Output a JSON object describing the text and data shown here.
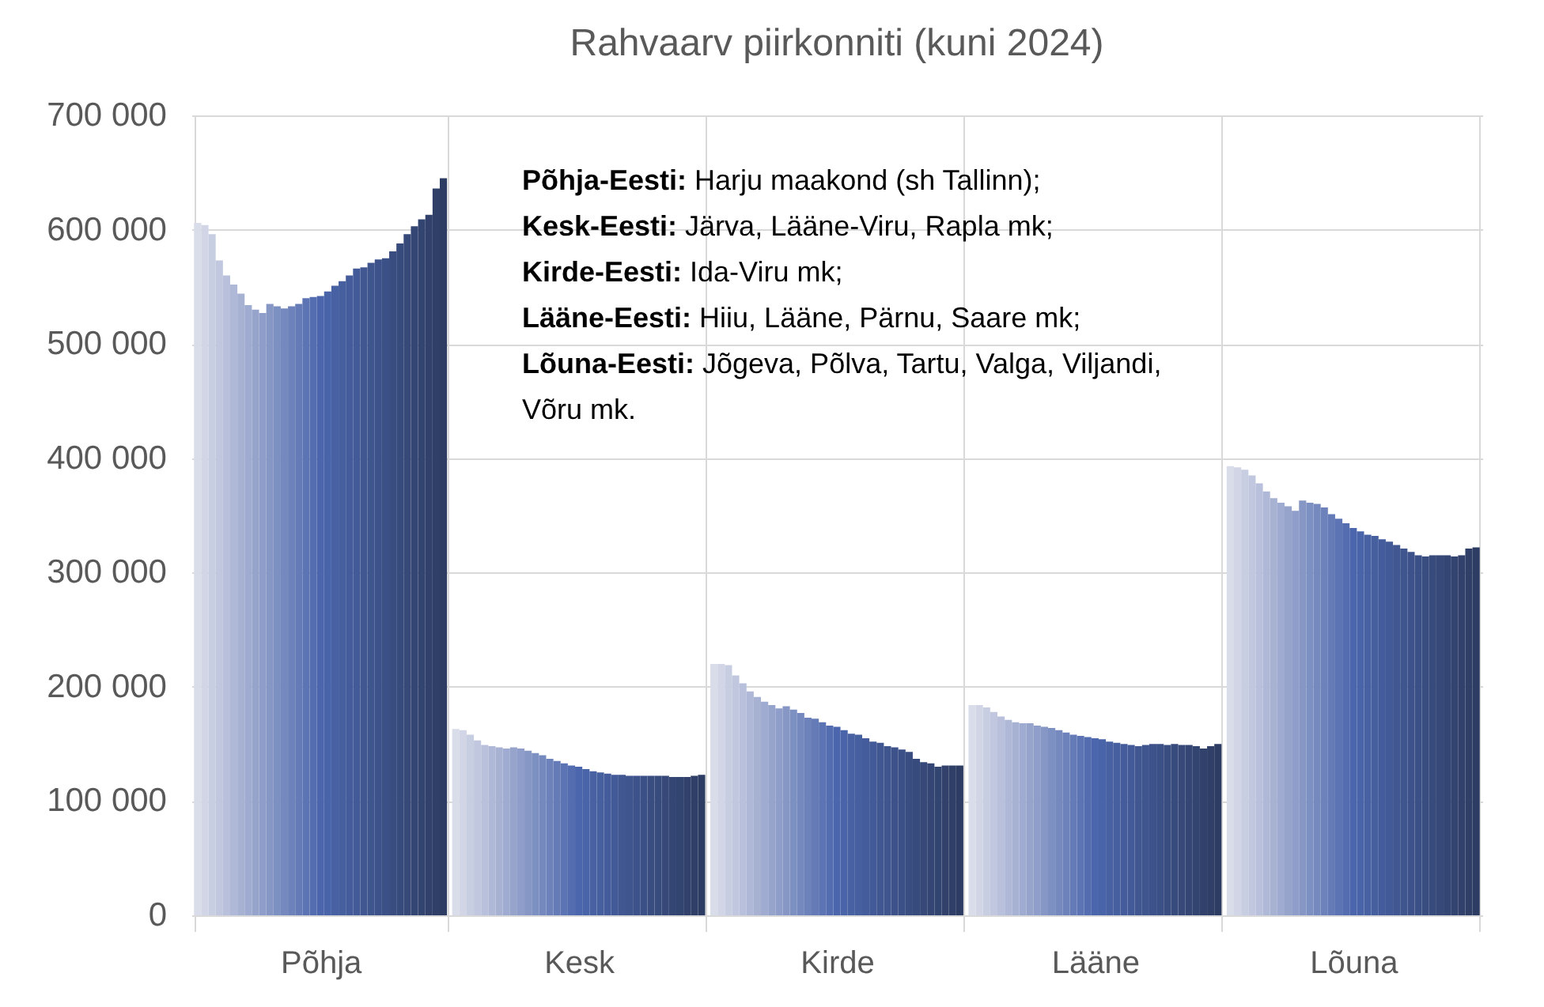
{
  "chart_data": {
    "type": "bar",
    "title": "Rahvaarv piirkonniti (kuni 2024)",
    "categories": [
      "Põhja",
      "Kesk",
      "Kirde",
      "Lääne",
      "Lõuna"
    ],
    "ylim": [
      0,
      700000
    ],
    "yticks": [
      {
        "value": 0,
        "label": "0"
      },
      {
        "value": 100000,
        "label": "100 000"
      },
      {
        "value": 200000,
        "label": "200 000"
      },
      {
        "value": 300000,
        "label": "300 000"
      },
      {
        "value": 400000,
        "label": "400 000"
      },
      {
        "value": 500000,
        "label": "500 000"
      },
      {
        "value": 600000,
        "label": "600 000"
      },
      {
        "value": 700000,
        "label": "700 000"
      }
    ],
    "grid": true,
    "legend": false,
    "annotations": [
      "Põhja-Eesti: Harju maakond (sh Tallinn);",
      "Kesk-Eesti: Järva, Lääne-Viru, Rapla mk;",
      "Kirde-Eesti: Ida-Viru mk;",
      "Lääne-Eesti: Hiiu, Lääne, Pärnu, Saare mk;",
      "Lõuna-Eesti: Jõgeva, Põlva, Tartu, Valga, Viljandi, Võru mk."
    ],
    "series": [
      {
        "color": "#d9dce9",
        "values": [
          606000,
          163000,
          220000,
          184000,
          393000
        ]
      },
      {
        "color": "#d1d5e5",
        "values": [
          604000,
          162000,
          220000,
          184000,
          392000
        ]
      },
      {
        "color": "#c8cee2",
        "values": [
          596000,
          158000,
          219000,
          182000,
          390000
        ]
      },
      {
        "color": "#c0c7de",
        "values": [
          573000,
          153000,
          210000,
          178000,
          385000
        ]
      },
      {
        "color": "#b8c0db",
        "values": [
          560000,
          149000,
          203000,
          174000,
          378000
        ]
      },
      {
        "color": "#afb9d7",
        "values": [
          552000,
          148000,
          196000,
          171000,
          371000
        ]
      },
      {
        "color": "#a7b2d3",
        "values": [
          544000,
          147000,
          191000,
          169000,
          365000
        ]
      },
      {
        "color": "#9fabd0",
        "values": [
          534000,
          146000,
          187000,
          168000,
          361000
        ]
      },
      {
        "color": "#96a4cc",
        "values": [
          530000,
          147000,
          184000,
          168000,
          358000
        ]
      },
      {
        "color": "#8e9dc9",
        "values": [
          527000,
          146000,
          181000,
          166000,
          354000
        ]
      },
      {
        "color": "#8697c5",
        "values": [
          535000,
          144000,
          183000,
          165000,
          363000
        ]
      },
      {
        "color": "#7d90c2",
        "values": [
          533000,
          142000,
          180000,
          164000,
          361000
        ]
      },
      {
        "color": "#7589be",
        "values": [
          531000,
          140000,
          177000,
          162000,
          360000
        ]
      },
      {
        "color": "#6d82ba",
        "values": [
          533000,
          137000,
          173000,
          160000,
          357000
        ]
      },
      {
        "color": "#647bb7",
        "values": [
          535000,
          135000,
          172000,
          158000,
          351000
        ]
      },
      {
        "color": "#5c74b3",
        "values": [
          540000,
          133000,
          169000,
          157000,
          347000
        ]
      },
      {
        "color": "#546db0",
        "values": [
          541000,
          131000,
          166000,
          156000,
          343000
        ]
      },
      {
        "color": "#4b66ac",
        "values": [
          542000,
          130000,
          165000,
          155000,
          339000
        ]
      },
      {
        "color": "#4964a8",
        "values": [
          546000,
          128000,
          162000,
          154000,
          336000
        ]
      },
      {
        "color": "#4761a3",
        "values": [
          551000,
          126000,
          159000,
          152000,
          333000
        ]
      },
      {
        "color": "#465f9f",
        "values": [
          555000,
          125000,
          158000,
          151000,
          332000
        ]
      },
      {
        "color": "#445c9b",
        "values": [
          560000,
          124000,
          155000,
          150000,
          329000
        ]
      },
      {
        "color": "#425a97",
        "values": [
          566000,
          123000,
          152000,
          149000,
          327000
        ]
      },
      {
        "color": "#405792",
        "values": [
          567000,
          123000,
          151000,
          148000,
          324000
        ]
      },
      {
        "color": "#3f558e",
        "values": [
          571000,
          122000,
          148000,
          149000,
          321000
        ]
      },
      {
        "color": "#3d528a",
        "values": [
          574000,
          122000,
          147000,
          150000,
          318000
        ]
      },
      {
        "color": "#3b5086",
        "values": [
          575000,
          122000,
          145000,
          150000,
          315000
        ]
      },
      {
        "color": "#394d81",
        "values": [
          581000,
          122000,
          143000,
          149000,
          314000
        ]
      },
      {
        "color": "#384b7d",
        "values": [
          588000,
          122000,
          137000,
          150000,
          315000
        ]
      },
      {
        "color": "#364979",
        "values": [
          596000,
          122000,
          134000,
          149000,
          315000
        ]
      },
      {
        "color": "#344674",
        "values": [
          603000,
          121000,
          133000,
          149000,
          315000
        ]
      },
      {
        "color": "#324470",
        "values": [
          609000,
          121000,
          130000,
          148000,
          314000
        ]
      },
      {
        "color": "#31416c",
        "values": [
          613000,
          121000,
          131000,
          146000,
          315000
        ]
      },
      {
        "color": "#2f3f67",
        "values": [
          636000,
          122000,
          131000,
          148000,
          321000
        ]
      },
      {
        "color": "#2d3c63",
        "values": [
          645000,
          123000,
          131000,
          150000,
          322000
        ]
      }
    ]
  }
}
